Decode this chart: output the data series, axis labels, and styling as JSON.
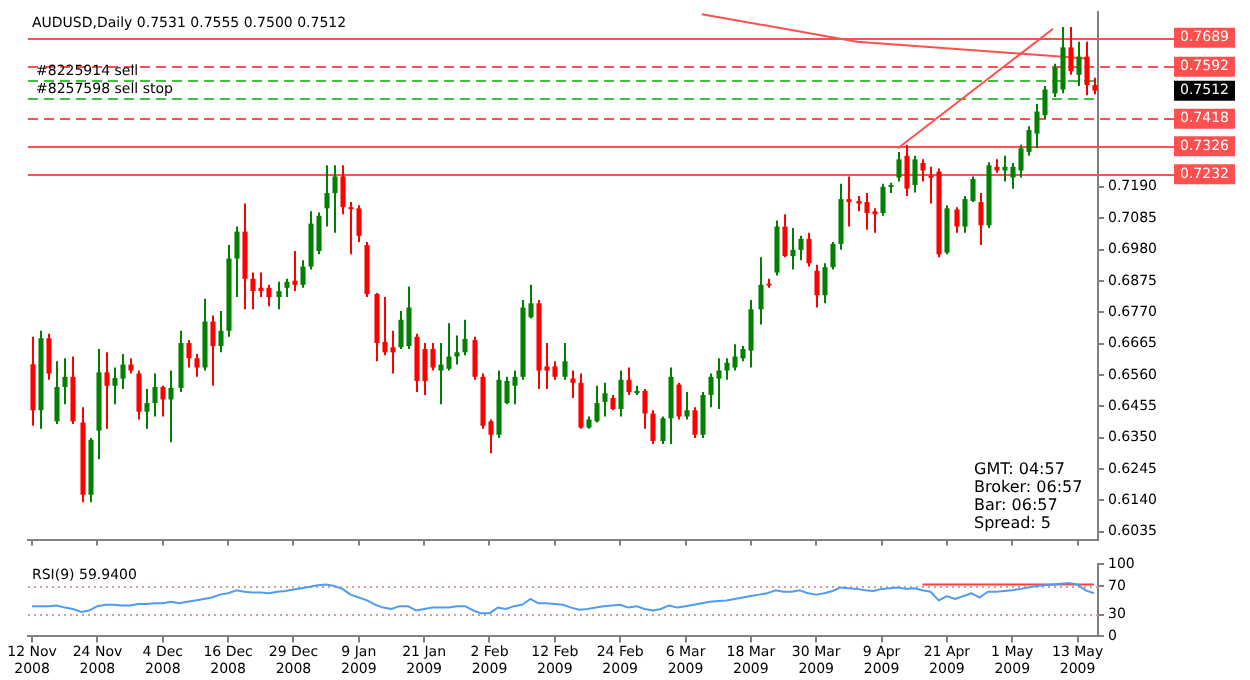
{
  "chart_data": [
    {
      "type": "candlestick",
      "title": "AUDUSD,Daily 0.7531 0.7555 0.7500 0.7512",
      "categories": [
        "12 Nov 2008",
        null,
        null,
        null,
        null,
        null,
        null,
        null,
        "24 Nov 2008",
        null,
        null,
        null,
        null,
        null,
        null,
        null,
        "4 Dec 2008",
        null,
        null,
        null,
        null,
        null,
        null,
        null,
        "16 Dec 2008",
        null,
        null,
        null,
        null,
        null,
        null,
        null,
        "29 Dec 2008",
        null,
        null,
        null,
        null,
        null,
        null,
        null,
        "9 Jan 2009",
        null,
        null,
        null,
        null,
        null,
        null,
        null,
        "21 Jan 2009",
        null,
        null,
        null,
        null,
        null,
        null,
        null,
        "2 Feb 2009",
        null,
        null,
        null,
        null,
        null,
        null,
        null,
        "12 Feb 2009",
        null,
        null,
        null,
        null,
        null,
        null,
        null,
        "24 Feb 2009",
        null,
        null,
        null,
        null,
        null,
        null,
        null,
        "6 Mar 2009",
        null,
        null,
        null,
        null,
        null,
        null,
        null,
        "18 Mar 2009",
        null,
        null,
        null,
        null,
        null,
        null,
        null,
        "30 Mar 2009",
        null,
        null,
        null,
        null,
        null,
        null,
        null,
        "9 Apr 2009",
        null,
        null,
        null,
        null,
        null,
        null,
        null,
        "21 Apr 2009",
        null,
        null,
        null,
        null,
        null,
        null,
        null,
        "1 May 2009",
        null,
        null,
        null,
        null,
        null,
        null,
        null,
        "13 May 2009",
        null,
        null
      ],
      "ohlc": [
        [
          0.6596,
          0.6688,
          0.639,
          0.6442
        ],
        [
          0.6442,
          0.6708,
          0.638,
          0.6683
        ],
        [
          0.6683,
          0.6698,
          0.6544,
          0.6565
        ],
        [
          0.6405,
          0.6606,
          0.6396,
          0.652
        ],
        [
          0.652,
          0.6616,
          0.6462,
          0.6554
        ],
        [
          0.6554,
          0.6622,
          0.6396,
          0.6405
        ],
        [
          0.6401,
          0.6452,
          0.6134,
          0.6159
        ],
        [
          0.6159,
          0.6349,
          0.6134,
          0.6343
        ],
        [
          0.6374,
          0.6647,
          0.6278,
          0.6569
        ],
        [
          0.6569,
          0.6636,
          0.638,
          0.6524
        ],
        [
          0.6524,
          0.6585,
          0.6462,
          0.655
        ],
        [
          0.6548,
          0.663,
          0.6513,
          0.6595
        ],
        [
          0.6595,
          0.6616,
          0.6565,
          0.6575
        ],
        [
          0.6565,
          0.6575,
          0.6411,
          0.6437
        ],
        [
          0.6437,
          0.6513,
          0.638,
          0.6466
        ],
        [
          0.6466,
          0.6565,
          0.6421,
          0.652
        ],
        [
          0.652,
          0.6524,
          0.6421,
          0.6478
        ],
        [
          0.6478,
          0.6575,
          0.6335,
          0.6517
        ],
        [
          0.6517,
          0.6708,
          0.6503,
          0.6667
        ],
        [
          0.6667,
          0.6677,
          0.6585,
          0.6616
        ],
        [
          0.6616,
          0.663,
          0.6554,
          0.6585
        ],
        [
          0.6585,
          0.6815,
          0.6575,
          0.6739
        ],
        [
          0.6739,
          0.6759,
          0.6524,
          0.6657
        ],
        [
          0.6657,
          0.6774,
          0.6636,
          0.6708
        ],
        [
          0.6708,
          0.6995,
          0.6688,
          0.695
        ],
        [
          0.695,
          0.7057,
          0.6821,
          0.704
        ],
        [
          0.704,
          0.7134,
          0.678,
          0.6882
        ],
        [
          0.6882,
          0.6903,
          0.678,
          0.6841
        ],
        [
          0.6852,
          0.6903,
          0.6821,
          0.6841
        ],
        [
          0.6852,
          0.6862,
          0.679,
          0.6821
        ],
        [
          0.6821,
          0.6872,
          0.678,
          0.6841
        ],
        [
          0.6852,
          0.6882,
          0.6821,
          0.6872
        ],
        [
          0.6876,
          0.6975,
          0.6841,
          0.6862
        ],
        [
          0.6862,
          0.6944,
          0.6852,
          0.6923
        ],
        [
          0.6923,
          0.7108,
          0.6913,
          0.7067
        ],
        [
          0.6975,
          0.7104,
          0.6964,
          0.7093
        ],
        [
          0.7118,
          0.7262,
          0.7057,
          0.7169
        ],
        [
          0.7169,
          0.7262,
          0.7036,
          0.7225
        ],
        [
          0.7225,
          0.7262,
          0.7098,
          0.7122
        ],
        [
          0.7122,
          0.7139,
          0.6964,
          0.7118
        ],
        [
          0.7118,
          0.7128,
          0.7005,
          0.7026
        ],
        [
          0.6995,
          0.7005,
          0.6821,
          0.6831
        ],
        [
          0.6831,
          0.6835,
          0.6606,
          0.6667
        ],
        [
          0.6671,
          0.6821,
          0.6626,
          0.6636
        ],
        [
          0.6653,
          0.6708,
          0.6565,
          0.6636
        ],
        [
          0.6653,
          0.6774,
          0.6647,
          0.6745
        ],
        [
          0.6657,
          0.6856,
          0.6647,
          0.6786
        ],
        [
          0.6688,
          0.6698,
          0.6503,
          0.654
        ],
        [
          0.6647,
          0.6667,
          0.6493,
          0.654
        ],
        [
          0.6647,
          0.6667,
          0.6575,
          0.6585
        ],
        [
          0.6575,
          0.6667,
          0.6462,
          0.6595
        ],
        [
          0.6581,
          0.6733,
          0.6575,
          0.6622
        ],
        [
          0.6622,
          0.6692,
          0.6595,
          0.6636
        ],
        [
          0.6636,
          0.6745,
          0.6626,
          0.6681
        ],
        [
          0.6677,
          0.6688,
          0.6544,
          0.6554
        ],
        [
          0.6554,
          0.6565,
          0.638,
          0.639
        ],
        [
          0.6405,
          0.6411,
          0.6298,
          0.636
        ],
        [
          0.636,
          0.6575,
          0.6349,
          0.6544
        ],
        [
          0.6466,
          0.6554,
          0.6462,
          0.654
        ],
        [
          0.6524,
          0.6575,
          0.6462,
          0.6554
        ],
        [
          0.6554,
          0.6811,
          0.6544,
          0.6786
        ],
        [
          0.6753,
          0.6862,
          0.6749,
          0.68
        ],
        [
          0.68,
          0.6811,
          0.6513,
          0.6575
        ],
        [
          0.6589,
          0.6667,
          0.6513,
          0.6575
        ],
        [
          0.6589,
          0.6606,
          0.6544,
          0.6554
        ],
        [
          0.6554,
          0.6667,
          0.6544,
          0.6606
        ],
        [
          0.6548,
          0.6575,
          0.6483,
          0.6534
        ],
        [
          0.6534,
          0.6565,
          0.638,
          0.6384
        ],
        [
          0.6384,
          0.6421,
          0.638,
          0.6411
        ],
        [
          0.6405,
          0.6524,
          0.6401,
          0.6466
        ],
        [
          0.647,
          0.6534,
          0.6421,
          0.6499
        ],
        [
          0.6483,
          0.6493,
          0.6442,
          0.6446
        ],
        [
          0.6446,
          0.6575,
          0.6421,
          0.6544
        ],
        [
          0.6544,
          0.6585,
          0.6493,
          0.6503
        ],
        [
          0.6499,
          0.6524,
          0.6493,
          0.6507
        ],
        [
          0.6507,
          0.6513,
          0.638,
          0.6431
        ],
        [
          0.6431,
          0.6442,
          0.6329,
          0.6339
        ],
        [
          0.6339,
          0.6421,
          0.6329,
          0.6415
        ],
        [
          0.6415,
          0.6585,
          0.6329,
          0.6554
        ],
        [
          0.6528,
          0.6534,
          0.6411,
          0.6421
        ],
        [
          0.6421,
          0.6503,
          0.6411,
          0.6442
        ],
        [
          0.6442,
          0.6452,
          0.6349,
          0.636
        ],
        [
          0.636,
          0.6503,
          0.6349,
          0.6493
        ],
        [
          0.6493,
          0.6565,
          0.6452,
          0.6554
        ],
        [
          0.6548,
          0.6616,
          0.6446,
          0.6575
        ],
        [
          0.6575,
          0.6616,
          0.6544,
          0.6601
        ],
        [
          0.6585,
          0.6663,
          0.6575,
          0.6622
        ],
        [
          0.6616,
          0.6657,
          0.6606,
          0.6647
        ],
        [
          0.6642,
          0.6811,
          0.6585,
          0.678
        ],
        [
          0.678,
          0.6954,
          0.6729,
          0.6862
        ],
        [
          0.6866,
          0.6882,
          0.6852,
          0.6862
        ],
        [
          0.6903,
          0.7077,
          0.6893,
          0.7057
        ],
        [
          0.7057,
          0.7098,
          0.6954,
          0.6958
        ],
        [
          0.6958,
          0.7052,
          0.6913,
          0.6979
        ],
        [
          0.6979,
          0.7026,
          0.6944,
          0.7016
        ],
        [
          0.7016,
          0.7036,
          0.6923,
          0.6934
        ],
        [
          0.6909,
          0.6929,
          0.6786,
          0.6827
        ],
        [
          0.6827,
          0.6934,
          0.68,
          0.6921
        ],
        [
          0.6921,
          0.7005,
          0.6913,
          0.6999
        ],
        [
          0.6999,
          0.72,
          0.6979,
          0.7149
        ],
        [
          0.7149,
          0.7225,
          0.7057,
          0.7139
        ],
        [
          0.7143,
          0.7159,
          0.7108,
          0.7134
        ],
        [
          0.7139,
          0.7169,
          0.7046,
          0.7102
        ],
        [
          0.7108,
          0.7118,
          0.7036,
          0.7098
        ],
        [
          0.7102,
          0.72,
          0.7093,
          0.719
        ],
        [
          0.719,
          0.7204,
          0.7169,
          0.7196
        ],
        [
          0.7221,
          0.7307,
          0.7208,
          0.7282
        ],
        [
          0.7294,
          0.7331,
          0.7159,
          0.7184
        ],
        [
          0.7196,
          0.7294,
          0.7171,
          0.7282
        ],
        [
          0.727,
          0.7282,
          0.7208,
          0.7245
        ],
        [
          0.7227,
          0.7257,
          0.7134,
          0.7224
        ],
        [
          0.7241,
          0.7251,
          0.6954,
          0.6964
        ],
        [
          0.697,
          0.7128,
          0.6964,
          0.7118
        ],
        [
          0.7114,
          0.7122,
          0.7036,
          0.7057
        ],
        [
          0.7057,
          0.7159,
          0.7036,
          0.7149
        ],
        [
          0.7143,
          0.7225,
          0.7139,
          0.7216
        ],
        [
          0.7139,
          0.7169,
          0.6995,
          0.7061
        ],
        [
          0.7061,
          0.7272,
          0.7052,
          0.7262
        ],
        [
          0.7257,
          0.7282,
          0.7237,
          0.7245
        ],
        [
          0.7245,
          0.7294,
          0.7208,
          0.7257
        ],
        [
          0.7221,
          0.727,
          0.7184,
          0.7257
        ],
        [
          0.7245,
          0.7331,
          0.7221,
          0.7319
        ],
        [
          0.7307,
          0.7393,
          0.7294,
          0.738
        ],
        [
          0.7368,
          0.7467,
          0.7319,
          0.7442
        ],
        [
          0.743,
          0.7528,
          0.7417,
          0.7516
        ],
        [
          0.7503,
          0.7602,
          0.7491,
          0.759
        ],
        [
          0.7516,
          0.7725,
          0.7503,
          0.7657
        ],
        [
          0.7657,
          0.7725,
          0.7565,
          0.7577
        ],
        [
          0.7565,
          0.7676,
          0.7528,
          0.7626
        ],
        [
          0.7626,
          0.7676,
          0.7497,
          0.7531
        ],
        [
          0.7531,
          0.7555,
          0.75,
          0.7512
        ]
      ],
      "colors": [
        "#ff0000",
        "#008000",
        "#ff0000",
        "#008000",
        "#008000",
        "#ff0000",
        "#ff0000",
        "#008000",
        "#008000",
        "#ff0000",
        "#008000",
        "#008000",
        "#ff0000",
        "#ff0000",
        "#008000",
        "#008000",
        "#ff0000",
        "#008000",
        "#008000",
        "#ff0000",
        "#ff0000",
        "#008000",
        "#ff0000",
        "#008000",
        "#008000",
        "#008000",
        "#ff0000",
        "#ff0000",
        "#ff0000",
        "#ff0000",
        "#008000",
        "#008000",
        "#ff0000",
        "#008000",
        "#008000",
        "#008000",
        "#008000",
        "#008000",
        "#ff0000",
        "#ff0000",
        "#ff0000",
        "#ff0000",
        "#ff0000",
        "#ff0000",
        "#ff0000",
        "#008000",
        "#008000",
        "#ff0000",
        "#ff0000",
        "#ff0000",
        "#008000",
        "#008000",
        "#008000",
        "#008000",
        "#ff0000",
        "#ff0000",
        "#ff0000",
        "#008000",
        "#008000",
        "#008000",
        "#008000",
        "#008000",
        "#ff0000",
        "#ff0000",
        "#ff0000",
        "#008000",
        "#ff0000",
        "#ff0000",
        "#008000",
        "#008000",
        "#008000",
        "#ff0000",
        "#008000",
        "#ff0000",
        "#008000",
        "#ff0000",
        "#ff0000",
        "#008000",
        "#008000",
        "#ff0000",
        "#008000",
        "#ff0000",
        "#008000",
        "#008000",
        "#008000",
        "#008000",
        "#008000",
        "#008000",
        "#008000",
        "#008000",
        "#ff0000",
        "#008000",
        "#ff0000",
        "#008000",
        "#008000",
        "#ff0000",
        "#ff0000",
        "#008000",
        "#008000",
        "#008000",
        "#ff0000",
        "#ff0000",
        "#ff0000",
        "#ff0000",
        "#008000",
        "#008000",
        "#008000",
        "#ff0000",
        "#008000",
        "#ff0000",
        "#ff0000",
        "#ff0000",
        "#008000",
        "#ff0000",
        "#008000",
        "#008000",
        "#ff0000",
        "#008000",
        "#ff0000",
        "#008000",
        "#008000",
        "#008000",
        "#008000",
        "#008000",
        "#008000",
        "#008000",
        "#008000",
        "#ff0000",
        "#008000",
        "#ff0000",
        "#ff0000"
      ],
      "series": [
        {
          "type": "line",
          "color": "#ff5050",
          "values": [
            null,
            null,
            null,
            null,
            null,
            null,
            null,
            null,
            null,
            null,
            null,
            null,
            null,
            null,
            null,
            null,
            null,
            null,
            null,
            null,
            null,
            null,
            null,
            null,
            null,
            null,
            null,
            null,
            null,
            null,
            null,
            null,
            null,
            null,
            null,
            null,
            null,
            null,
            null,
            null,
            null,
            null,
            null,
            null,
            null,
            null,
            null,
            null,
            null,
            null,
            null,
            null,
            null,
            null,
            null,
            null,
            null,
            null,
            null,
            null,
            null,
            null,
            null,
            null,
            null,
            null,
            null,
            null,
            null,
            null,
            null,
            null,
            null,
            null,
            null,
            null,
            null,
            null,
            null,
            null,
            null,
            null,
            0.7768,
            null,
            null,
            null,
            null,
            null,
            null,
            null,
            null,
            null,
            null,
            null,
            null,
            null,
            null,
            null,
            null,
            null,
            null,
            0.7676,
            null,
            null,
            null,
            null,
            null,
            null,
            null,
            null,
            null,
            null,
            null,
            null,
            null,
            null,
            null,
            null,
            null,
            null,
            null,
            null,
            null,
            null,
            null,
            null,
            null,
            null,
            null,
            0.762,
            null
          ]
        },
        {
          "type": "line",
          "color": "#ff5050",
          "values": [
            null,
            null,
            null,
            null,
            null,
            null,
            null,
            null,
            null,
            null,
            null,
            null,
            null,
            null,
            null,
            null,
            null,
            null,
            null,
            null,
            null,
            null,
            null,
            null,
            null,
            null,
            null,
            null,
            null,
            null,
            null,
            null,
            null,
            null,
            null,
            null,
            null,
            null,
            null,
            null,
            null,
            null,
            null,
            null,
            null,
            null,
            null,
            null,
            null,
            null,
            null,
            null,
            null,
            null,
            null,
            null,
            null,
            null,
            null,
            null,
            null,
            null,
            null,
            null,
            null,
            null,
            null,
            null,
            null,
            null,
            null,
            null,
            null,
            null,
            null,
            null,
            null,
            null,
            null,
            null,
            null,
            null,
            null,
            null,
            null,
            null,
            null,
            null,
            null,
            null,
            null,
            null,
            null,
            null,
            null,
            null,
            null,
            null,
            null,
            null,
            null,
            null,
            null,
            null,
            null,
            null,
            0.7319,
            null,
            null,
            null,
            null,
            null,
            null,
            null,
            null,
            null,
            null,
            null,
            null,
            null,
            null,
            null,
            null,
            null,
            null,
            0.7719,
            null,
            null,
            null,
            null,
            null
          ]
        }
      ],
      "ylim": [
        0.6009,
        0.7774
      ],
      "yticks": [
        0.6035,
        {
          "value": 0.614,
          "label": "0.6140"
        },
        0.6245,
        {
          "value": 0.635,
          "label": "0.6350"
        },
        0.6455,
        {
          "value": 0.656,
          "label": "0.6560"
        },
        0.6665,
        {
          "value": 0.677,
          "label": "0.6770"
        },
        0.6875,
        {
          "value": 0.698,
          "label": "0.6980"
        },
        0.7085,
        {
          "value": 0.719,
          "label": "0.7190"
        }
      ],
      "ref_lines": [
        {
          "axis": "y",
          "value": 0.7689,
          "label": "0.7689",
          "color": "#ff5050",
          "line_style": "solid"
        },
        {
          "axis": "y",
          "value": 0.7592,
          "label": "0.7592",
          "color": "#ff5050",
          "line_style": "dashed"
        },
        {
          "axis": "y",
          "value": 0.7546,
          "label": "#8225914 sell",
          "color": "#40c040",
          "line_style": "dashed"
        },
        {
          "axis": "y",
          "value": 0.7485,
          "label": "#8257598 sell stop",
          "color": "#40c040",
          "line_style": "dashed"
        },
        {
          "axis": "y",
          "value": 0.7418,
          "label": "0.7418",
          "color": "#ff5050",
          "line_style": "dashed"
        },
        {
          "axis": "y",
          "value": 0.7326,
          "label": "0.7326",
          "color": "#ff5050",
          "line_style": "solid"
        },
        {
          "axis": "y",
          "value": 0.7232,
          "label": "0.7232",
          "color": "#ff5050",
          "line_style": "solid"
        }
      ],
      "annotations": [
        "0.7512",
        "GMT: 04:57",
        "Broker: 06:57",
        "Bar: 06:57",
        "Spread: 5"
      ],
      "tick_labels": "y"
    },
    {
      "type": "line",
      "title": "RSI(9) 59.9400",
      "series": [
        {
          "color": "#4f9cf0",
          "values": [
            42,
            42,
            42,
            43,
            40,
            38,
            34,
            36,
            42,
            44,
            44,
            43,
            43,
            45,
            45,
            46,
            46,
            48,
            46,
            48,
            50,
            52,
            54,
            58,
            60,
            64,
            62,
            61,
            61,
            60,
            62,
            63,
            65,
            67,
            69,
            71,
            72,
            70,
            66,
            58,
            54,
            50,
            44,
            40,
            38,
            42,
            42,
            36,
            38,
            40,
            40,
            40,
            42,
            42,
            36,
            32,
            32,
            40,
            38,
            42,
            44,
            52,
            46,
            46,
            45,
            44,
            40,
            37,
            38,
            40,
            42,
            43,
            44,
            40,
            42,
            38,
            36,
            38,
            43,
            40,
            42,
            44,
            46,
            48,
            49,
            50,
            52,
            54,
            56,
            58,
            60,
            64,
            62,
            62,
            64,
            60,
            58,
            60,
            63,
            68,
            67,
            66,
            64,
            63,
            66,
            67,
            68,
            66,
            67,
            64,
            62,
            50,
            56,
            52,
            56,
            60,
            54,
            62,
            62,
            63,
            64,
            66,
            68,
            70,
            71,
            72,
            73,
            74,
            72,
            64,
            60
          ]
        },
        {
          "color": "#ff4040",
          "values": [
            null,
            null,
            null,
            null,
            null,
            null,
            null,
            null,
            null,
            null,
            null,
            null,
            null,
            null,
            null,
            null,
            null,
            null,
            null,
            null,
            null,
            null,
            null,
            null,
            null,
            null,
            null,
            null,
            null,
            null,
            null,
            null,
            null,
            null,
            null,
            null,
            null,
            null,
            null,
            null,
            null,
            null,
            null,
            null,
            null,
            null,
            null,
            null,
            null,
            null,
            null,
            null,
            null,
            null,
            null,
            null,
            null,
            null,
            null,
            null,
            null,
            null,
            null,
            null,
            null,
            null,
            null,
            null,
            null,
            null,
            null,
            null,
            null,
            null,
            null,
            null,
            null,
            null,
            null,
            null,
            null,
            null,
            null,
            null,
            null,
            null,
            null,
            null,
            null,
            null,
            null,
            null,
            null,
            null,
            null,
            null,
            null,
            null,
            null,
            null,
            null,
            null,
            null,
            null,
            null,
            null,
            null,
            null,
            null,
            72,
            null,
            null,
            null,
            null,
            null,
            null,
            null,
            null,
            null,
            null,
            null,
            null,
            null,
            null,
            null,
            null,
            null,
            null,
            null,
            null,
            72
          ]
        }
      ],
      "ylim": [
        0,
        100
      ],
      "yticks": [
        0,
        30,
        70,
        100
      ],
      "ref_lines": [
        {
          "axis": "y",
          "value": 30,
          "color": "#d0a0a0",
          "line_style": "dotted"
        },
        {
          "axis": "y",
          "value": 70,
          "color": "#d0a0a0",
          "line_style": "dotted"
        }
      ]
    }
  ]
}
